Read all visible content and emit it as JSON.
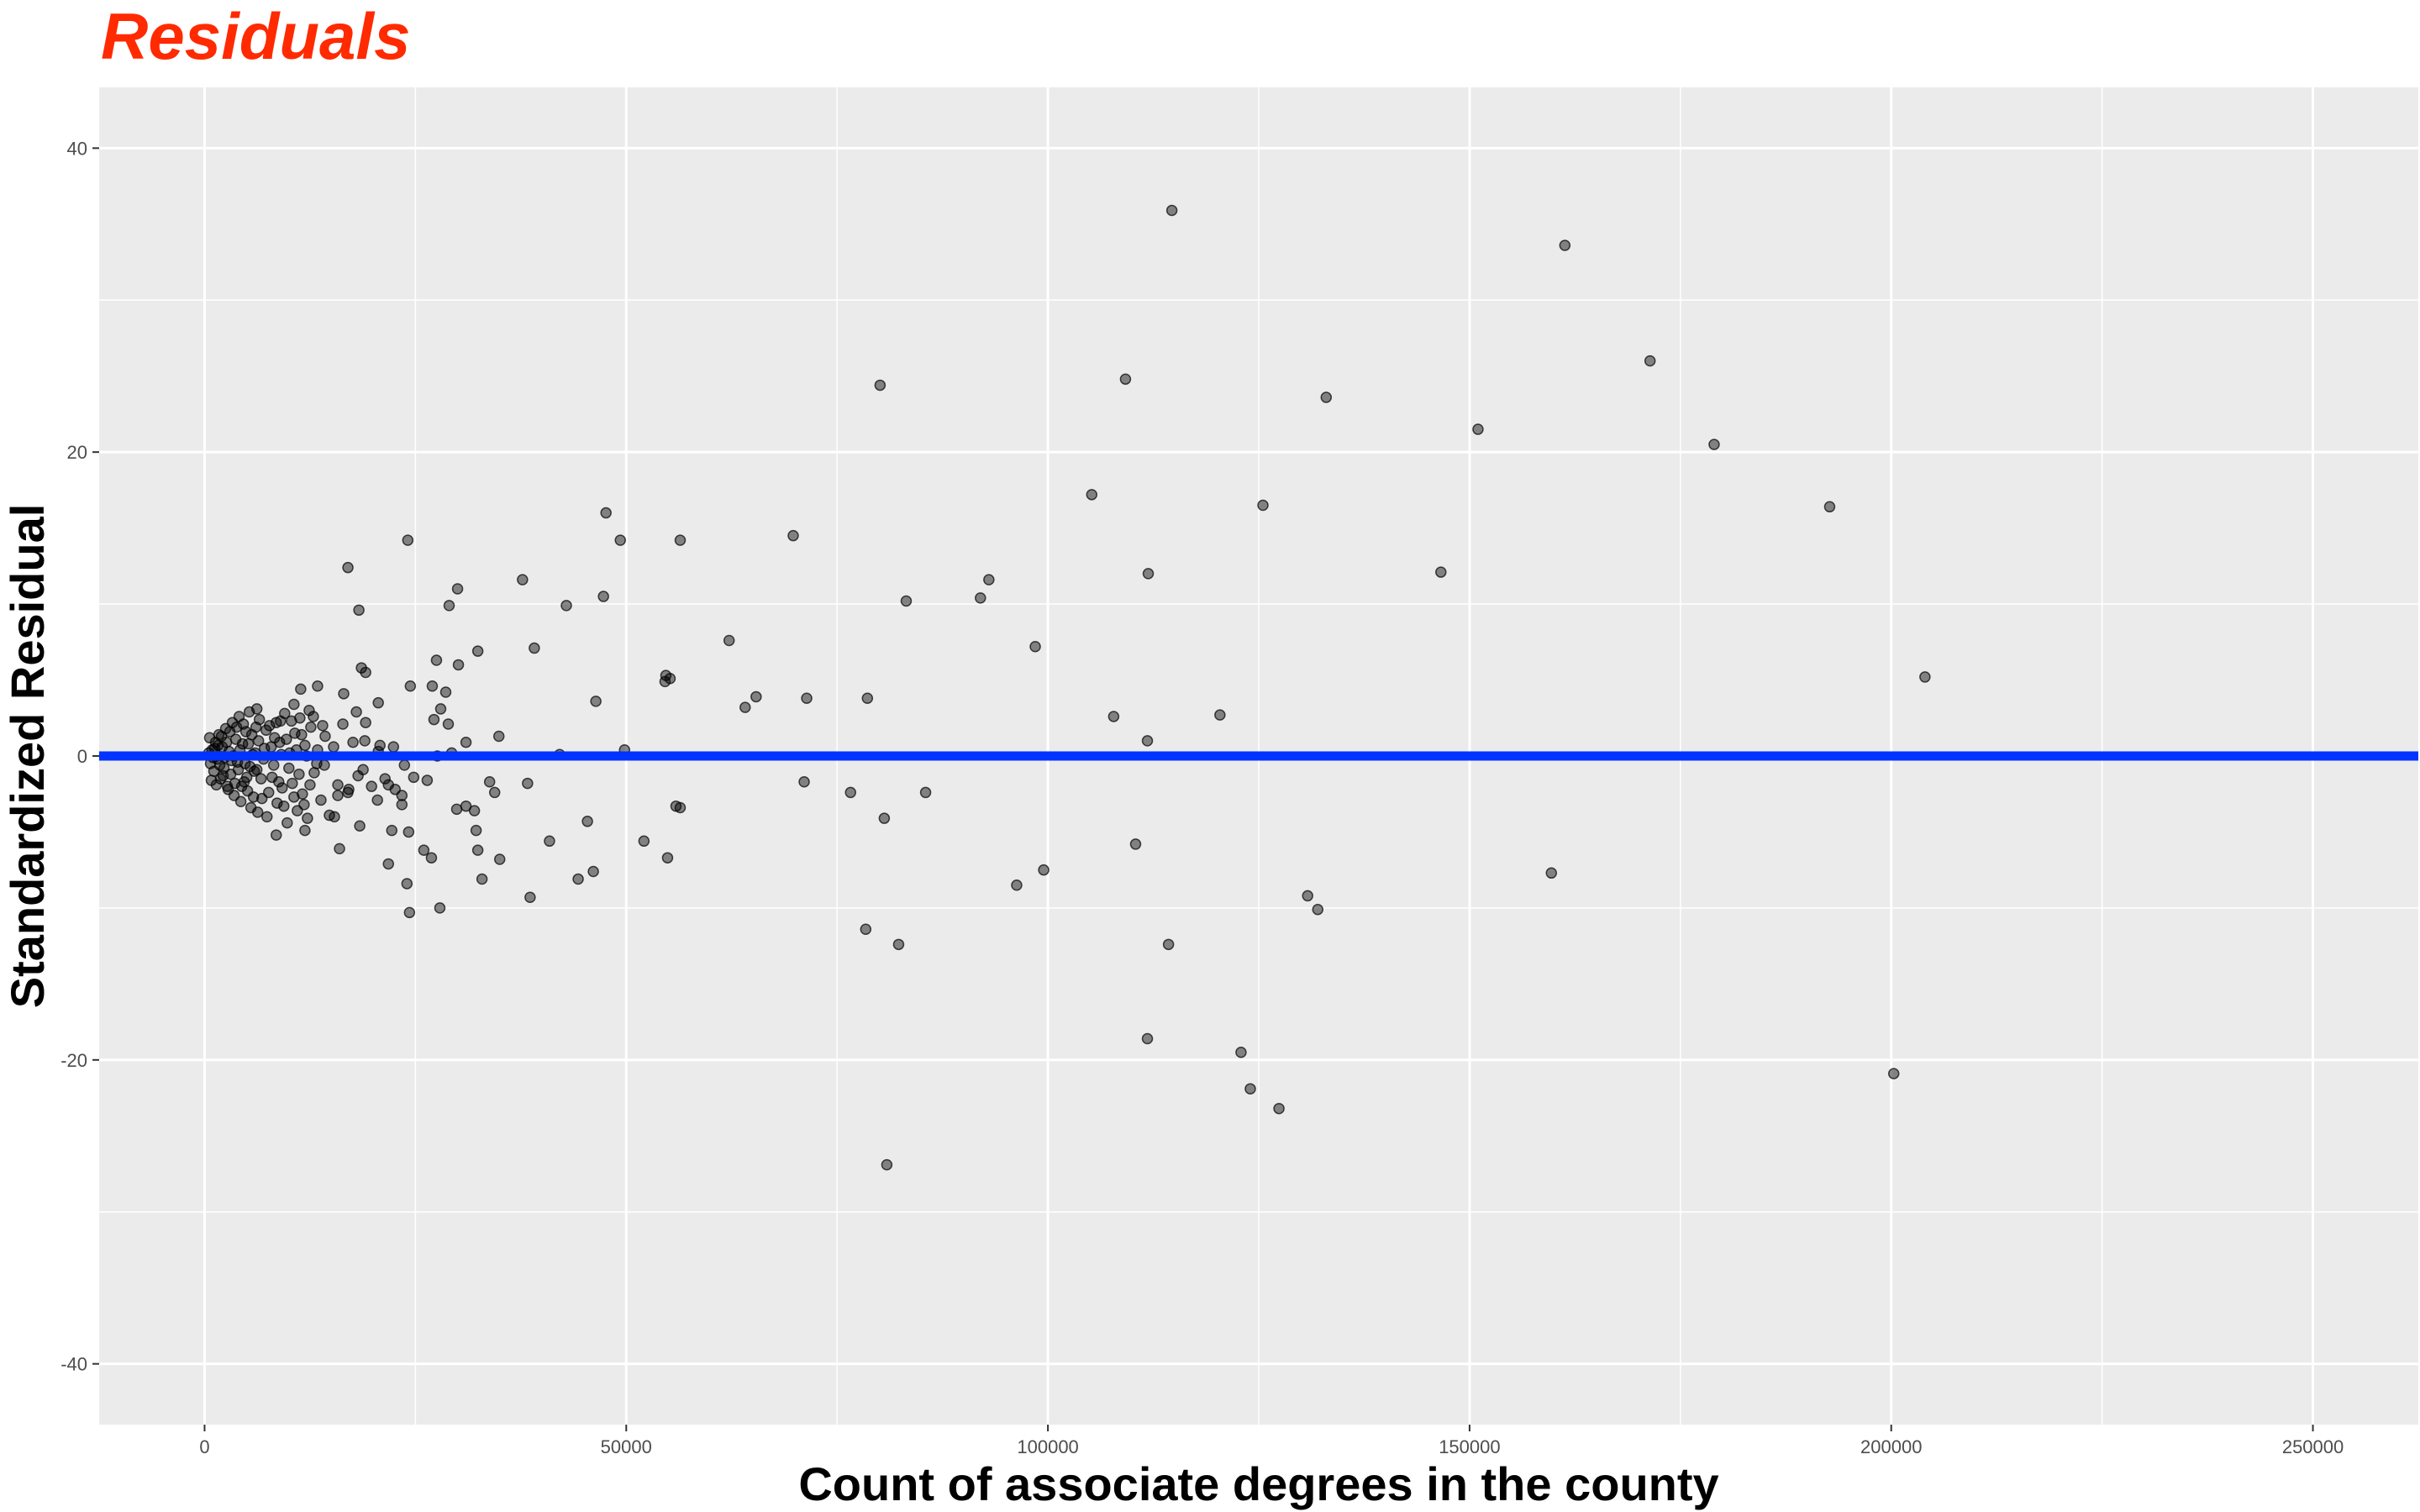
{
  "chart_data": {
    "type": "scatter",
    "title": "Residuals",
    "xlabel": "Count of associate degrees in the county",
    "ylabel": "Standardized Residual",
    "xlim": [
      -12500,
      262500
    ],
    "ylim": [
      -44,
      44
    ],
    "xticks": [
      0,
      50000,
      100000,
      150000,
      200000,
      250000
    ],
    "yticks": [
      -40,
      -20,
      0,
      20,
      40
    ],
    "grid": true,
    "legend": "none",
    "reference_line": {
      "y": 0,
      "color": "#0033ff"
    },
    "colors": {
      "title": "#ff2a00",
      "panel": "#ebebeb",
      "grid_major": "#ffffff",
      "point": "#000000",
      "reference_line": "#0033ff"
    },
    "points": [
      {
        "x": 114700,
        "y": 35.9
      },
      {
        "x": 161300,
        "y": 33.6
      },
      {
        "x": 171400,
        "y": 26.0
      },
      {
        "x": 109200,
        "y": 24.8
      },
      {
        "x": 80100,
        "y": 24.4
      },
      {
        "x": 133000,
        "y": 23.6
      },
      {
        "x": 151000,
        "y": 21.5
      },
      {
        "x": 179000,
        "y": 20.5
      },
      {
        "x": 105200,
        "y": 17.2
      },
      {
        "x": 125500,
        "y": 16.5
      },
      {
        "x": 192700,
        "y": 16.4
      },
      {
        "x": 47600,
        "y": 16.0
      },
      {
        "x": 24100,
        "y": 14.2
      },
      {
        "x": 49300,
        "y": 14.2
      },
      {
        "x": 56400,
        "y": 14.2
      },
      {
        "x": 69800,
        "y": 14.5
      },
      {
        "x": 17000,
        "y": 12.4
      },
      {
        "x": 111900,
        "y": 12.0
      },
      {
        "x": 146600,
        "y": 12.1
      },
      {
        "x": 37700,
        "y": 11.6
      },
      {
        "x": 93000,
        "y": 11.6
      },
      {
        "x": 30000,
        "y": 11.0
      },
      {
        "x": 47300,
        "y": 10.5
      },
      {
        "x": 92000,
        "y": 10.4
      },
      {
        "x": 83200,
        "y": 10.2
      },
      {
        "x": 29000,
        "y": 9.9
      },
      {
        "x": 42900,
        "y": 9.9
      },
      {
        "x": 18300,
        "y": 9.6
      },
      {
        "x": 62200,
        "y": 7.6
      },
      {
        "x": 98500,
        "y": 7.2
      },
      {
        "x": 39100,
        "y": 7.1
      },
      {
        "x": 32400,
        "y": 6.9
      },
      {
        "x": 27500,
        "y": 6.3
      },
      {
        "x": 30100,
        "y": 6.0
      },
      {
        "x": 18600,
        "y": 5.8
      },
      {
        "x": 19100,
        "y": 5.5
      },
      {
        "x": 54700,
        "y": 5.3
      },
      {
        "x": 55200,
        "y": 5.1
      },
      {
        "x": 204000,
        "y": 5.2
      },
      {
        "x": 54600,
        "y": 4.9
      },
      {
        "x": 24400,
        "y": 4.6
      },
      {
        "x": 27000,
        "y": 4.6
      },
      {
        "x": 13400,
        "y": 4.6
      },
      {
        "x": 11400,
        "y": 4.4
      },
      {
        "x": 28600,
        "y": 4.2
      },
      {
        "x": 16500,
        "y": 4.1
      },
      {
        "x": 65400,
        "y": 3.9
      },
      {
        "x": 71400,
        "y": 3.8
      },
      {
        "x": 78600,
        "y": 3.8
      },
      {
        "x": 46400,
        "y": 3.6
      },
      {
        "x": 20600,
        "y": 3.5
      },
      {
        "x": 10600,
        "y": 3.4
      },
      {
        "x": 64100,
        "y": 3.2
      },
      {
        "x": 28000,
        "y": 3.1
      },
      {
        "x": 12400,
        "y": 3.0
      },
      {
        "x": 18000,
        "y": 2.9
      },
      {
        "x": 6200,
        "y": 3.1
      },
      {
        "x": 107800,
        "y": 2.6
      },
      {
        "x": 120400,
        "y": 2.7
      },
      {
        "x": 27200,
        "y": 2.4
      },
      {
        "x": 28900,
        "y": 2.1
      },
      {
        "x": 19100,
        "y": 2.2
      },
      {
        "x": 14000,
        "y": 2.0
      },
      {
        "x": 9000,
        "y": 2.3
      },
      {
        "x": 34900,
        "y": 1.3
      },
      {
        "x": 111800,
        "y": 1.0
      },
      {
        "x": 31000,
        "y": 0.9
      },
      {
        "x": 20800,
        "y": 0.7
      },
      {
        "x": 49800,
        "y": 0.4
      },
      {
        "x": 42100,
        "y": 0.1
      },
      {
        "x": 29300,
        "y": 0.2
      },
      {
        "x": 27600,
        "y": 0.0
      },
      {
        "x": 14200,
        "y": -0.6
      },
      {
        "x": 18800,
        "y": -0.9
      },
      {
        "x": 23700,
        "y": -0.6
      },
      {
        "x": 24800,
        "y": -1.4
      },
      {
        "x": 26400,
        "y": -1.6
      },
      {
        "x": 71100,
        "y": -1.7
      },
      {
        "x": 33800,
        "y": -1.7
      },
      {
        "x": 38300,
        "y": -1.8
      },
      {
        "x": 21800,
        "y": -1.9
      },
      {
        "x": 22600,
        "y": -2.2
      },
      {
        "x": 34400,
        "y": -2.4
      },
      {
        "x": 76600,
        "y": -2.4
      },
      {
        "x": 85500,
        "y": -2.4
      },
      {
        "x": 17100,
        "y": -2.2
      },
      {
        "x": 15800,
        "y": -2.6
      },
      {
        "x": 20500,
        "y": -2.9
      },
      {
        "x": 23400,
        "y": -3.2
      },
      {
        "x": 31000,
        "y": -3.3
      },
      {
        "x": 56400,
        "y": -3.4
      },
      {
        "x": 29900,
        "y": -3.5
      },
      {
        "x": 32000,
        "y": -3.6
      },
      {
        "x": 55900,
        "y": -3.3
      },
      {
        "x": 15400,
        "y": -4.0
      },
      {
        "x": 80600,
        "y": -4.1
      },
      {
        "x": 45400,
        "y": -4.3
      },
      {
        "x": 18400,
        "y": -4.6
      },
      {
        "x": 22200,
        "y": -4.9
      },
      {
        "x": 24200,
        "y": -5.0
      },
      {
        "x": 32200,
        "y": -4.9
      },
      {
        "x": 11900,
        "y": -4.9
      },
      {
        "x": 8500,
        "y": -5.2
      },
      {
        "x": 40900,
        "y": -5.6
      },
      {
        "x": 52100,
        "y": -5.6
      },
      {
        "x": 110400,
        "y": -5.8
      },
      {
        "x": 16000,
        "y": -6.1
      },
      {
        "x": 26000,
        "y": -6.2
      },
      {
        "x": 32400,
        "y": -6.2
      },
      {
        "x": 26900,
        "y": -6.7
      },
      {
        "x": 35000,
        "y": -6.8
      },
      {
        "x": 54900,
        "y": -6.7
      },
      {
        "x": 21800,
        "y": -7.1
      },
      {
        "x": 99500,
        "y": -7.5
      },
      {
        "x": 46100,
        "y": -7.6
      },
      {
        "x": 159700,
        "y": -7.7
      },
      {
        "x": 32900,
        "y": -8.1
      },
      {
        "x": 44300,
        "y": -8.1
      },
      {
        "x": 24000,
        "y": -8.4
      },
      {
        "x": 96300,
        "y": -8.5
      },
      {
        "x": 130800,
        "y": -9.2
      },
      {
        "x": 38600,
        "y": -9.3
      },
      {
        "x": 132000,
        "y": -10.1
      },
      {
        "x": 27900,
        "y": -10.0
      },
      {
        "x": 24300,
        "y": -10.3
      },
      {
        "x": 78400,
        "y": -11.4
      },
      {
        "x": 82300,
        "y": -12.4
      },
      {
        "x": 114300,
        "y": -12.4
      },
      {
        "x": 111800,
        "y": -18.6
      },
      {
        "x": 122900,
        "y": -19.5
      },
      {
        "x": 200300,
        "y": -20.9
      },
      {
        "x": 124000,
        "y": -21.9
      },
      {
        "x": 127400,
        "y": -23.2
      },
      {
        "x": 80900,
        "y": -26.9
      },
      {
        "x": 500,
        "y": 0.2
      },
      {
        "x": 700,
        "y": -0.5
      },
      {
        "x": 900,
        "y": 0.4
      },
      {
        "x": 1100,
        "y": -1.0
      },
      {
        "x": 1300,
        "y": 0.9
      },
      {
        "x": 1500,
        "y": -0.2
      },
      {
        "x": 1700,
        "y": 1.4
      },
      {
        "x": 1900,
        "y": -1.5
      },
      {
        "x": 2100,
        "y": 0.6
      },
      {
        "x": 2300,
        "y": -0.8
      },
      {
        "x": 2500,
        "y": 1.8
      },
      {
        "x": 2700,
        "y": -2.0
      },
      {
        "x": 2900,
        "y": 0.3
      },
      {
        "x": 3100,
        "y": -1.2
      },
      {
        "x": 3300,
        "y": 2.2
      },
      {
        "x": 3500,
        "y": -2.6
      },
      {
        "x": 3700,
        "y": 1.1
      },
      {
        "x": 3900,
        "y": -0.4
      },
      {
        "x": 4100,
        "y": 2.6
      },
      {
        "x": 4300,
        "y": -3.0
      },
      {
        "x": 4500,
        "y": 0.8
      },
      {
        "x": 4700,
        "y": -1.7
      },
      {
        "x": 4900,
        "y": 1.6
      },
      {
        "x": 5100,
        "y": -2.3
      },
      {
        "x": 5300,
        "y": 2.9
      },
      {
        "x": 5500,
        "y": -3.4
      },
      {
        "x": 5700,
        "y": 0.1
      },
      {
        "x": 5900,
        "y": -1.0
      },
      {
        "x": 6100,
        "y": 1.9
      },
      {
        "x": 6300,
        "y": -3.7
      },
      {
        "x": 6500,
        "y": 2.4
      },
      {
        "x": 6800,
        "y": -2.8
      },
      {
        "x": 7100,
        "y": 0.5
      },
      {
        "x": 7400,
        "y": -4.0
      },
      {
        "x": 7700,
        "y": 2.0
      },
      {
        "x": 8000,
        "y": -1.4
      },
      {
        "x": 8300,
        "y": 1.2
      },
      {
        "x": 8600,
        "y": -3.1
      },
      {
        "x": 8900,
        "y": 0.9
      },
      {
        "x": 9200,
        "y": -2.1
      },
      {
        "x": 9500,
        "y": 2.8
      },
      {
        "x": 9800,
        "y": -4.4
      },
      {
        "x": 10100,
        "y": 0.2
      },
      {
        "x": 10400,
        "y": -1.8
      },
      {
        "x": 10700,
        "y": 1.5
      },
      {
        "x": 11000,
        "y": -3.6
      },
      {
        "x": 11300,
        "y": 2.5
      },
      {
        "x": 11600,
        "y": -2.5
      },
      {
        "x": 11900,
        "y": 0.7
      },
      {
        "x": 12200,
        "y": -4.1
      },
      {
        "x": 12600,
        "y": 1.9
      },
      {
        "x": 13000,
        "y": -1.1
      },
      {
        "x": 13400,
        "y": 0.4
      },
      {
        "x": 13800,
        "y": -2.9
      },
      {
        "x": 14300,
        "y": 1.3
      },
      {
        "x": 14800,
        "y": -3.9
      },
      {
        "x": 15300,
        "y": 0.6
      },
      {
        "x": 15800,
        "y": -1.9
      },
      {
        "x": 16400,
        "y": 2.1
      },
      {
        "x": 17000,
        "y": -2.4
      },
      {
        "x": 17600,
        "y": 0.9
      },
      {
        "x": 18200,
        "y": -1.3
      },
      {
        "x": 19000,
        "y": 1.0
      },
      {
        "x": 19800,
        "y": -2.0
      },
      {
        "x": 20600,
        "y": 0.3
      },
      {
        "x": 21400,
        "y": -1.5
      },
      {
        "x": 22400,
        "y": 0.6
      },
      {
        "x": 23400,
        "y": -2.6
      },
      {
        "x": 600,
        "y": 1.2
      },
      {
        "x": 800,
        "y": -1.6
      },
      {
        "x": 1000,
        "y": -0.1
      },
      {
        "x": 1200,
        "y": 0.5
      },
      {
        "x": 1400,
        "y": -1.9
      },
      {
        "x": 1600,
        "y": 0.7
      },
      {
        "x": 1800,
        "y": -0.6
      },
      {
        "x": 2000,
        "y": 1.3
      },
      {
        "x": 2200,
        "y": -1.3
      },
      {
        "x": 2400,
        "y": -0.1
      },
      {
        "x": 2600,
        "y": 0.9
      },
      {
        "x": 2800,
        "y": -2.2
      },
      {
        "x": 3000,
        "y": 1.6
      },
      {
        "x": 3200,
        "y": -0.3
      },
      {
        "x": 3400,
        "y": 0.0
      },
      {
        "x": 3600,
        "y": -1.8
      },
      {
        "x": 3800,
        "y": 1.9
      },
      {
        "x": 4000,
        "y": -0.9
      },
      {
        "x": 4200,
        "y": 0.4
      },
      {
        "x": 4400,
        "y": -2.0
      },
      {
        "x": 4600,
        "y": 2.1
      },
      {
        "x": 4800,
        "y": -0.5
      },
      {
        "x": 5000,
        "y": -1.4
      },
      {
        "x": 5200,
        "y": 0.8
      },
      {
        "x": 5400,
        "y": -0.7
      },
      {
        "x": 5600,
        "y": 1.4
      },
      {
        "x": 5800,
        "y": -2.7
      },
      {
        "x": 6000,
        "y": 0.2
      },
      {
        "x": 6200,
        "y": -0.9
      },
      {
        "x": 6400,
        "y": 1.0
      },
      {
        "x": 6700,
        "y": -1.5
      },
      {
        "x": 7000,
        "y": -0.2
      },
      {
        "x": 7300,
        "y": 1.7
      },
      {
        "x": 7600,
        "y": -2.4
      },
      {
        "x": 7900,
        "y": 0.6
      },
      {
        "x": 8200,
        "y": -0.6
      },
      {
        "x": 8500,
        "y": 2.2
      },
      {
        "x": 8800,
        "y": -1.7
      },
      {
        "x": 9100,
        "y": 0.1
      },
      {
        "x": 9400,
        "y": -3.3
      },
      {
        "x": 9700,
        "y": 1.1
      },
      {
        "x": 10000,
        "y": -0.8
      },
      {
        "x": 10300,
        "y": 2.3
      },
      {
        "x": 10600,
        "y": -2.7
      },
      {
        "x": 10900,
        "y": 0.4
      },
      {
        "x": 11200,
        "y": -1.2
      },
      {
        "x": 11500,
        "y": 1.4
      },
      {
        "x": 11800,
        "y": -3.2
      },
      {
        "x": 12100,
        "y": 0.0
      },
      {
        "x": 12500,
        "y": -1.9
      },
      {
        "x": 12900,
        "y": 2.6
      },
      {
        "x": 13300,
        "y": -0.5
      }
    ]
  }
}
